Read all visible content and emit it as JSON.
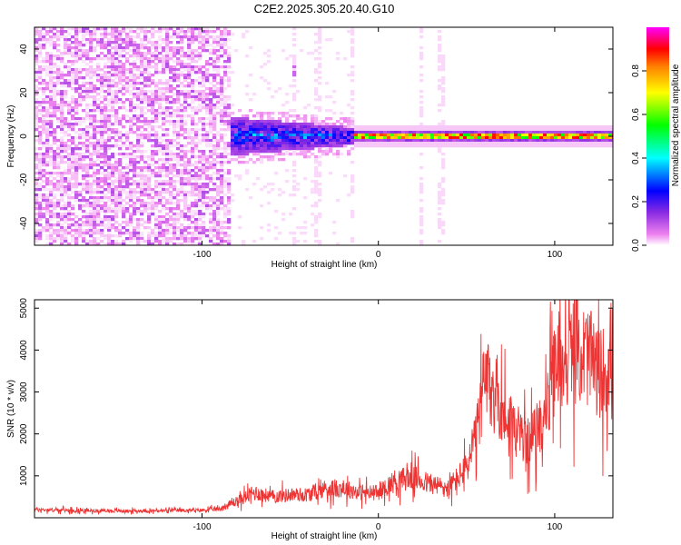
{
  "figure_title": "C2E2.2025.305.20.40.G10",
  "chart_data": [
    {
      "type": "heatmap",
      "title": "C2E2.2025.305.20.40.G10",
      "xlabel": "Height of straight line (km)",
      "ylabel": "Frequency (Hz)",
      "xlim": [
        -195,
        133
      ],
      "ylim": [
        -50,
        50
      ],
      "x_ticks": [
        -100,
        0,
        100
      ],
      "x_tick_labels": [
        "-100",
        "0",
        "100"
      ],
      "y_ticks": [
        -40,
        -20,
        0,
        20,
        40
      ],
      "y_tick_labels": [
        "-40",
        "-20",
        "0",
        "20",
        "40"
      ],
      "colorbar": {
        "label": "Normalized spectral amplitude",
        "range": [
          0,
          1
        ],
        "ticks": [
          0.0,
          0.2,
          0.4,
          0.6,
          0.8
        ],
        "tick_labels": [
          "0.0",
          "0.2",
          "0.4",
          "0.6",
          "0.8"
        ],
        "colormap": [
          "#ffffff",
          "#ee82ee",
          "#8a2be2",
          "#0000ff",
          "#00ffff",
          "#00ff00",
          "#ffff00",
          "#ff8000",
          "#ff0000",
          "#ff00ff"
        ]
      },
      "features": {
        "noise_region_km": [
          -195,
          -85
        ],
        "transition_region_km": [
          -100,
          -15
        ],
        "carrier_band_hz": [
          -2,
          2
        ],
        "carrier_start_km": -15,
        "spurious_lines_km": [
          -48,
          -35,
          -16,
          23,
          35
        ],
        "spurious_line_at_minus48_freq_hz": [
          25,
          33
        ]
      }
    },
    {
      "type": "line",
      "title": "",
      "xlabel": "Height of straight line (km)",
      "ylabel": "SNR (10 * v/v)",
      "xlim": [
        -195,
        133
      ],
      "ylim": [
        0,
        5200
      ],
      "x_ticks": [
        -100,
        0,
        100
      ],
      "x_tick_labels": [
        "-100",
        "0",
        "100"
      ],
      "y_ticks": [
        1000,
        2000,
        3000,
        4000,
        5000
      ],
      "y_tick_labels": [
        "1000",
        "2000",
        "3000",
        "4000",
        "5000"
      ],
      "series": [
        {
          "name": "SNR",
          "color": "#ee3333",
          "x": [
            -195,
            -180,
            -160,
            -140,
            -120,
            -100,
            -90,
            -80,
            -70,
            -60,
            -50,
            -40,
            -30,
            -20,
            -10,
            0,
            10,
            20,
            30,
            40,
            50,
            55,
            60,
            65,
            70,
            80,
            85,
            90,
            95,
            100,
            105,
            110,
            115,
            120,
            125,
            130,
            133
          ],
          "y": [
            200,
            180,
            170,
            160,
            170,
            180,
            210,
            400,
            600,
            500,
            550,
            550,
            700,
            700,
            600,
            600,
            900,
            950,
            800,
            700,
            1200,
            1800,
            3200,
            3100,
            2600,
            2000,
            1800,
            2100,
            2500,
            3500,
            3800,
            4000,
            3900,
            3800,
            3400,
            3600,
            4200
          ]
        }
      ]
    }
  ],
  "colors": {
    "axis": "#000000",
    "line": "#ee3333",
    "background": "#ffffff"
  }
}
